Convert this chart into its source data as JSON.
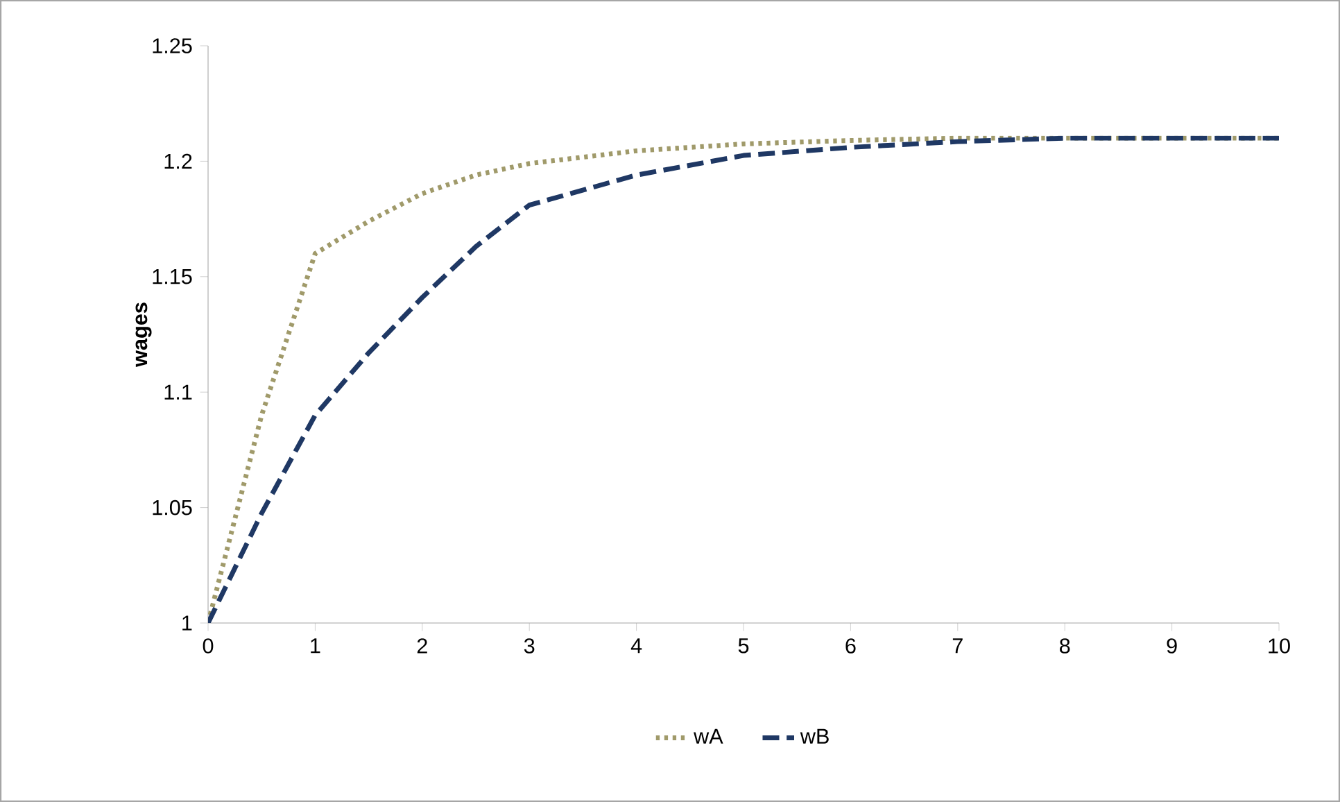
{
  "chart_data": {
    "type": "line",
    "ylabel": "wages",
    "xlim": [
      0,
      10
    ],
    "ylim": [
      1,
      1.25
    ],
    "xticks": [
      0,
      1,
      2,
      3,
      4,
      5,
      6,
      7,
      8,
      9,
      10
    ],
    "yticks": [
      1,
      1.05,
      1.1,
      1.15,
      1.2,
      1.25
    ],
    "grid": false,
    "legend": "bottom",
    "marker": "none",
    "series": [
      {
        "name": "wA",
        "color": "#a09a6a",
        "line_style": "dotted",
        "x": [
          0,
          0.5,
          1,
          1.5,
          2,
          2.5,
          3,
          4,
          5,
          6,
          7,
          8,
          10
        ],
        "values": [
          1,
          1.09,
          1.16,
          1.174,
          1.186,
          1.194,
          1.199,
          1.2045,
          1.2075,
          1.209,
          1.21,
          1.21,
          1.21
        ]
      },
      {
        "name": "wB",
        "color": "#1f3864",
        "line_style": "dashed",
        "x": [
          0,
          0.5,
          1,
          1.5,
          2,
          2.5,
          3,
          3.5,
          4,
          5,
          6,
          7,
          8,
          10
        ],
        "values": [
          1,
          1.0475,
          1.09,
          1.117,
          1.141,
          1.163,
          1.181,
          1.1875,
          1.194,
          1.2025,
          1.206,
          1.2085,
          1.21,
          1.21
        ]
      }
    ]
  }
}
